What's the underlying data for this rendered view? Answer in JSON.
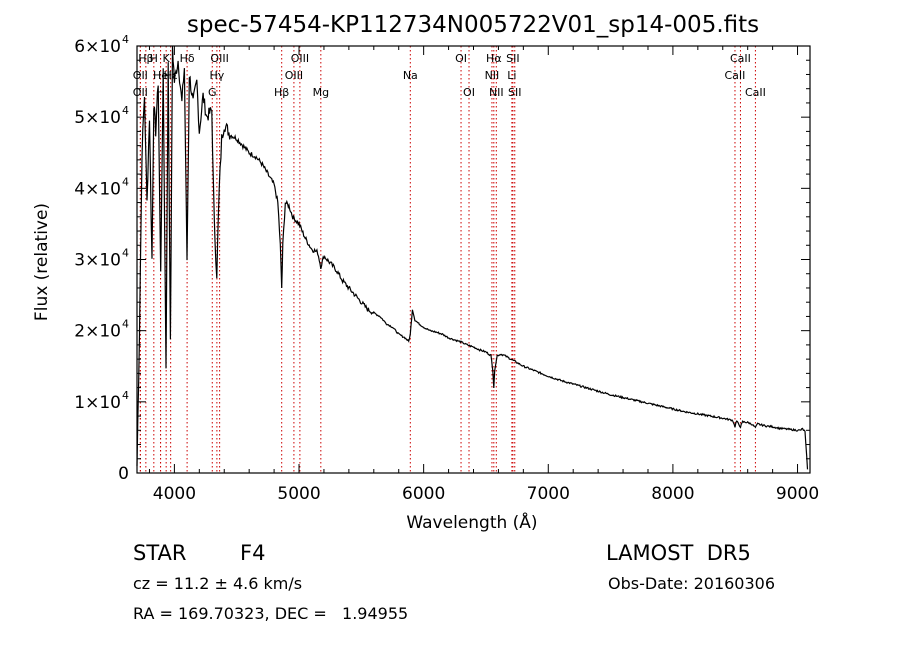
{
  "chart_data": {
    "type": "line",
    "title": "spec-57454-KP112734N005722V01_sp14-005.fits",
    "xlabel": "Wavelength (Å)",
    "ylabel": "Flux (relative)",
    "xlim": [
      3700,
      9100
    ],
    "ylim": [
      0,
      60000
    ],
    "xticks": [
      4000,
      5000,
      6000,
      7000,
      8000,
      9000
    ],
    "xtick_labels": [
      "4000",
      "5000",
      "6000",
      "7000",
      "8000",
      "9000"
    ],
    "yticks": [
      0,
      10000,
      20000,
      30000,
      40000,
      50000,
      60000
    ],
    "ytick_labels": [
      "0",
      "1×10",
      "2×10",
      "3×10",
      "4×10",
      "5×10",
      "6×10"
    ],
    "ytick_exponent": "4",
    "line_color": "#000000",
    "marker_color": "#cc0000",
    "series": [
      {
        "x": [
          3700,
          3720,
          3740,
          3760,
          3780,
          3800,
          3820,
          3835,
          3850,
          3870,
          3890,
          3910,
          3933,
          3950,
          3968,
          3985,
          4000,
          4030,
          4060,
          4080,
          4101,
          4120,
          4150,
          4180,
          4200,
          4230,
          4260,
          4300,
          4320,
          4340,
          4360,
          4380,
          4400,
          4450,
          4500,
          4550,
          4600,
          4650,
          4700,
          4750,
          4800,
          4830,
          4850,
          4861,
          4870,
          4890,
          4920,
          4950,
          5000,
          5050,
          5100,
          5150,
          5175,
          5200,
          5250,
          5300,
          5350,
          5400,
          5450,
          5500,
          5550,
          5600,
          5650,
          5700,
          5750,
          5800,
          5850,
          5880,
          5893,
          5910,
          5930,
          5960,
          6000,
          6050,
          6100,
          6150,
          6200,
          6250,
          6300,
          6350,
          6400,
          6450,
          6500,
          6540,
          6555,
          6563,
          6570,
          6590,
          6620,
          6650,
          6700,
          6750,
          6800,
          6900,
          7000,
          7100,
          7200,
          7300,
          7400,
          7500,
          7600,
          7700,
          7800,
          7900,
          8000,
          8100,
          8200,
          8300,
          8400,
          8480,
          8498,
          8510,
          8542,
          8560,
          8600,
          8630,
          8662,
          8680,
          8700,
          8750,
          8800,
          8850,
          8900,
          8950,
          9000,
          9020,
          9040,
          9060,
          9080
        ],
        "y": [
          1000,
          20000,
          45000,
          53000,
          38000,
          50000,
          30000,
          52000,
          48000,
          55000,
          28000,
          56000,
          15000,
          58000,
          18000,
          60000,
          55000,
          58000,
          52000,
          57000,
          30000,
          56000,
          52000,
          55000,
          48000,
          53000,
          50000,
          51000,
          35000,
          28000,
          40000,
          47000,
          49000,
          47500,
          47000,
          46000,
          45000,
          44500,
          43500,
          42000,
          40500,
          38000,
          32000,
          26000,
          32000,
          38000,
          37500,
          36000,
          35000,
          33000,
          31500,
          31000,
          29000,
          30500,
          29500,
          28500,
          27000,
          26000,
          25000,
          24000,
          23000,
          22500,
          22000,
          21000,
          20500,
          19500,
          19000,
          18500,
          19500,
          23000,
          21500,
          21000,
          20500,
          20000,
          19800,
          19500,
          19000,
          18700,
          18400,
          18000,
          17700,
          17300,
          17000,
          16500,
          14500,
          12000,
          14500,
          16500,
          16700,
          16500,
          16000,
          15500,
          15000,
          14300,
          13600,
          13000,
          12500,
          12000,
          11500,
          11000,
          10600,
          10200,
          9800,
          9400,
          9000,
          8600,
          8300,
          8000,
          7700,
          7400,
          6500,
          7300,
          6500,
          7200,
          7100,
          6900,
          6400,
          6900,
          6800,
          6600,
          6500,
          6300,
          6200,
          6100,
          6000,
          6000,
          6200,
          5800,
          500
        ]
      }
    ],
    "lines": [
      {
        "label": "Hβ",
        "x": 3771,
        "row": 0
      },
      {
        "label": "OII",
        "x": 3727,
        "row": 1
      },
      {
        "label": "OII",
        "x": 3727,
        "row": 2
      },
      {
        "label": "H",
        "x": 3835,
        "row": 0
      },
      {
        "label": "He",
        "x": 3889,
        "row": 1
      },
      {
        "label": "H",
        "x": 3889,
        "row": 2
      },
      {
        "label": "K",
        "x": 3934,
        "row": 0
      },
      {
        "label": "Hε",
        "x": 3970,
        "row": 1
      },
      {
        "label": "Hδ",
        "x": 4102,
        "row": 0
      },
      {
        "label": "G",
        "x": 4304,
        "row": 2
      },
      {
        "label": "Hγ",
        "x": 4341,
        "row": 1
      },
      {
        "label": "OIII",
        "x": 4363,
        "row": 0
      },
      {
        "label": "Hβ",
        "x": 4861,
        "row": 2
      },
      {
        "label": "OIII",
        "x": 4959,
        "row": 1
      },
      {
        "label": "OIII",
        "x": 5007,
        "row": 0
      },
      {
        "label": "Mg",
        "x": 5175,
        "row": 2
      },
      {
        "label": "Na",
        "x": 5893,
        "row": 1
      },
      {
        "label": "OI",
        "x": 6300,
        "row": 0
      },
      {
        "label": "OI",
        "x": 6364,
        "row": 2
      },
      {
        "label": "NII",
        "x": 6548,
        "row": 1
      },
      {
        "label": "NII",
        "x": 6583,
        "row": 2
      },
      {
        "label": "Hα",
        "x": 6563,
        "row": 0
      },
      {
        "label": "SII",
        "x": 6716,
        "row": 0
      },
      {
        "label": "Li",
        "x": 6708,
        "row": 1
      },
      {
        "label": "SII",
        "x": 6731,
        "row": 2
      },
      {
        "label": "CaII",
        "x": 8498,
        "row": 1
      },
      {
        "label": "CaII",
        "x": 8542,
        "row": 0
      },
      {
        "label": "CaII",
        "x": 8662,
        "row": 2
      }
    ]
  },
  "info": {
    "object_class": "STAR",
    "subclass": "F4",
    "survey": "LAMOST  DR5",
    "redshift_line": "cz = 11.2 ± 4.6 km/s",
    "obs_date": "Obs-Date: 20160306",
    "coords": "RA = 169.70323, DEC =   1.94955"
  }
}
